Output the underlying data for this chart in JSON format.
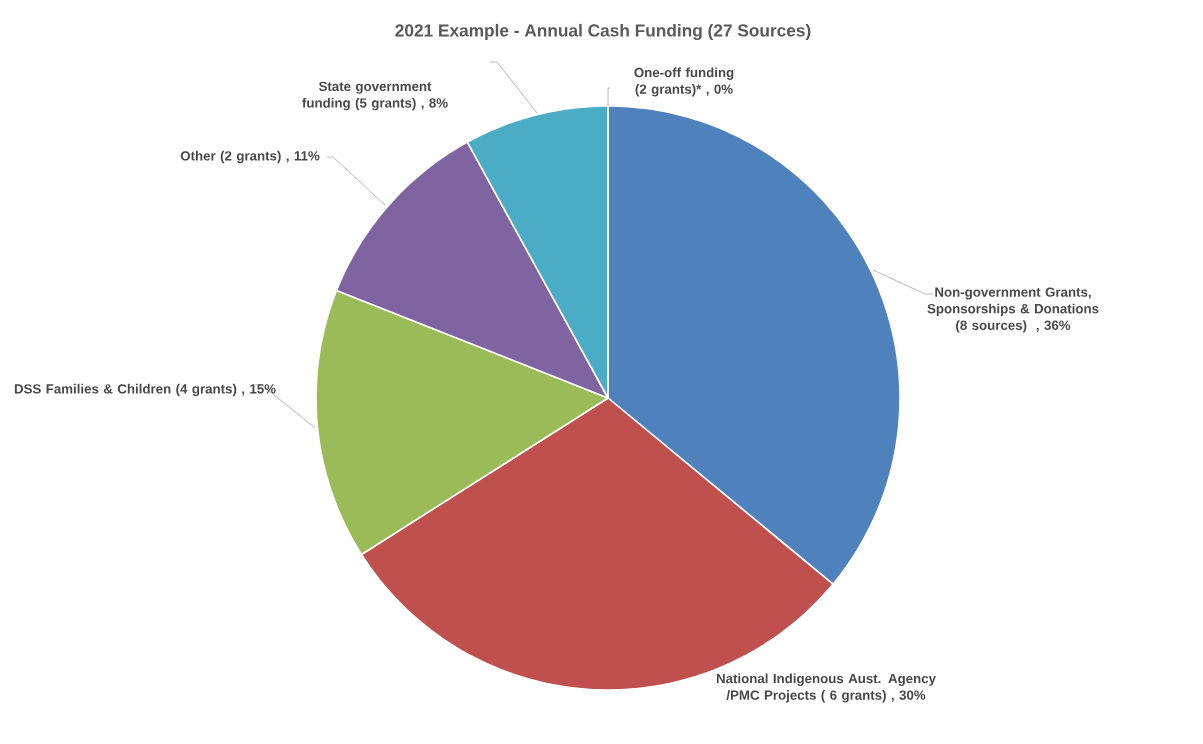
{
  "chart_data": {
    "type": "pie",
    "title": "2021 Example - Annual Cash Funding (27 Sources)",
    "categories": [
      "Non-government Grants, Sponsorships & Donations (8 sources) ",
      "National Indigenous Aust. Agency /PMC Projects ( 6 grants)",
      "DSS Families & Children (4 grants)",
      "Other (2 grants)",
      "State government funding (5 grants)",
      "One-off funding (2 grants)*"
    ],
    "values": [
      36,
      30,
      15,
      11,
      8,
      0
    ],
    "value_labels": [
      ", 36%",
      ", 30%",
      ", 15%",
      ", 11%",
      ", 8%",
      ", 0%"
    ],
    "colors": [
      "#4f81bd",
      "#c0504d",
      "#9bbb59",
      "#8064a2",
      "#4bacc6",
      "#f79646"
    ]
  }
}
